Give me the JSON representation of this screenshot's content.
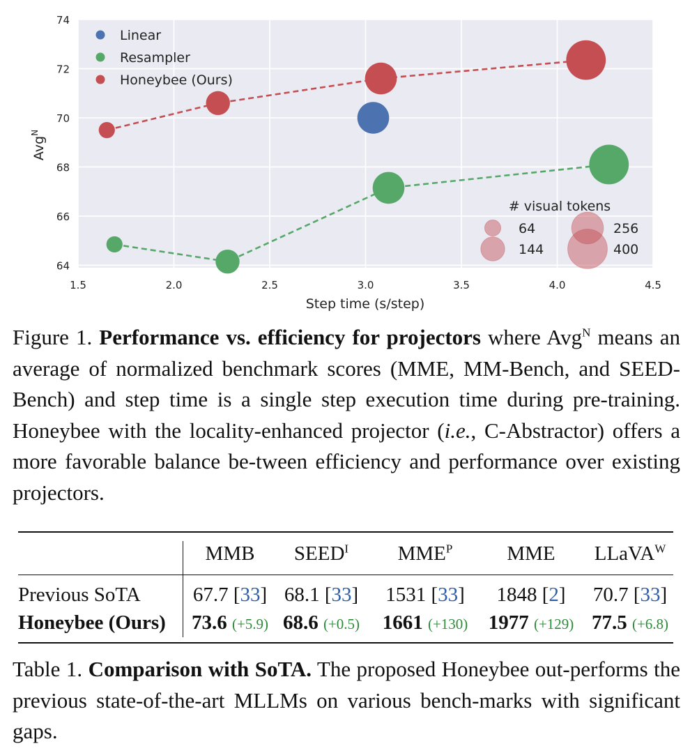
{
  "chart_data": {
    "type": "scatter",
    "xlabel": "Step time (s/step)",
    "ylabel": "Avg",
    "ylabel_sup": "N",
    "xlim": [
      1.5,
      4.5
    ],
    "ylim": [
      63.9,
      74
    ],
    "xticks": [
      "1.5",
      "2.0",
      "2.5",
      "3.0",
      "3.5",
      "4.0",
      "4.5"
    ],
    "yticks": [
      "64",
      "66",
      "68",
      "70",
      "72",
      "74"
    ],
    "grid": true,
    "legend_position": "top-left",
    "series": [
      {
        "name": "Linear",
        "color": "#4c72b0",
        "dashed": false,
        "points": [
          {
            "x": 3.04,
            "y": 70.0,
            "tokens": 256
          }
        ]
      },
      {
        "name": "Resampler",
        "color": "#55a868",
        "dashed": true,
        "points": [
          {
            "x": 1.69,
            "y": 64.85,
            "tokens": 64
          },
          {
            "x": 2.28,
            "y": 64.15,
            "tokens": 144
          },
          {
            "x": 3.12,
            "y": 67.15,
            "tokens": 256
          },
          {
            "x": 4.27,
            "y": 68.1,
            "tokens": 400
          }
        ]
      },
      {
        "name": "Honeybee (Ours)",
        "color": "#c44e52",
        "dashed": true,
        "points": [
          {
            "x": 1.65,
            "y": 69.5,
            "tokens": 64
          },
          {
            "x": 2.23,
            "y": 70.6,
            "tokens": 144
          },
          {
            "x": 3.08,
            "y": 71.6,
            "tokens": 256
          },
          {
            "x": 4.15,
            "y": 72.35,
            "tokens": 400
          }
        ]
      }
    ],
    "size_legend": {
      "title": "# visual tokens",
      "entries": [
        "64",
        "144",
        "256",
        "400"
      ]
    }
  },
  "figure_caption": {
    "label": "Figure 1.",
    "bold": "Performance vs. efficiency for projectors",
    "text_1": " where Avg",
    "sup": "N",
    "text_2": " means an average of normalized benchmark scores (MME, MM-Bench, and SEED-Bench) and step time is a single step execution time during pre-training. Honeybee with the locality-enhanced projector (",
    "italic": "i.e.",
    "text_3": ", C-Abstractor) offers a more favorable balance be-tween efficiency and performance over existing projectors."
  },
  "table": {
    "headers": [
      {
        "label": "MMB",
        "sup": ""
      },
      {
        "label": "SEED",
        "sup": "I"
      },
      {
        "label": "MME",
        "sup": "P"
      },
      {
        "label": "MME",
        "sup": ""
      },
      {
        "label": "LLaVA",
        "sup": "W"
      }
    ],
    "rows": [
      {
        "label": "Previous SoTA",
        "bold": false,
        "cells": [
          {
            "value": "67.7",
            "ref": "33"
          },
          {
            "value": "68.1",
            "ref": "33"
          },
          {
            "value": "1531",
            "ref": "33"
          },
          {
            "value": "1848",
            "ref": "2"
          },
          {
            "value": "70.7",
            "ref": "33"
          }
        ]
      },
      {
        "label": "Honeybee (Ours)",
        "bold": true,
        "cells": [
          {
            "value": "73.6",
            "gain": "(+5.9)"
          },
          {
            "value": "68.6",
            "gain": "(+0.5)"
          },
          {
            "value": "1661",
            "gain": "(+130)"
          },
          {
            "value": "1977",
            "gain": "(+129)"
          },
          {
            "value": "77.5",
            "gain": "(+6.8)"
          }
        ]
      }
    ]
  },
  "table_caption": {
    "label": "Table 1.",
    "bold": "Comparison with SoTA.",
    "text": " The proposed Honeybee out-performs the previous state-of-the-art MLLMs on various bench-marks with significant gaps."
  }
}
